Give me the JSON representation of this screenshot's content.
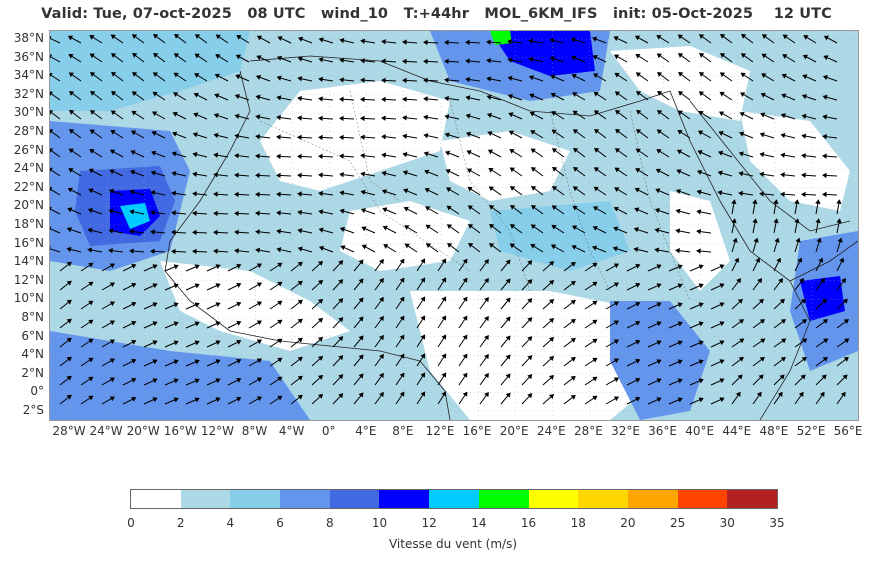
{
  "title": "Valid: Tue, 07-oct-2025   08 UTC   wind_10   T:+44hr   MOL_6KM_IFS   init: 05-Oct-2025    12 UTC",
  "map": {
    "lat_labels": [
      "38°N",
      "36°N",
      "34°N",
      "32°N",
      "30°N",
      "28°N",
      "26°N",
      "24°N",
      "22°N",
      "20°N",
      "18°N",
      "16°N",
      "14°N",
      "12°N",
      "10°N",
      "8°N",
      "6°N",
      "4°N",
      "2°N",
      "0°",
      "2°S"
    ],
    "lon_labels": [
      "28°W",
      "24°W",
      "20°W",
      "16°W",
      "12°W",
      "8°W",
      "4°W",
      "0°",
      "4°E",
      "8°E",
      "12°E",
      "16°E",
      "20°E",
      "24°E",
      "28°E",
      "32°E",
      "36°E",
      "40°E",
      "44°E",
      "48°E",
      "52°E",
      "56°E"
    ]
  },
  "colorbar": {
    "label": "Vitesse du vent (m/s)",
    "ticks": [
      "0",
      "2",
      "4",
      "6",
      "8",
      "10",
      "12",
      "14",
      "16",
      "18",
      "20",
      "25",
      "30",
      "35"
    ],
    "colors": [
      "#ffffff",
      "#add8e6",
      "#87ceeb",
      "#6495ed",
      "#4169e1",
      "#0000ff",
      "#00ccff",
      "#00ff00",
      "#ffff00",
      "#ffd700",
      "#ffa500",
      "#ff4500",
      "#b22222"
    ]
  }
}
